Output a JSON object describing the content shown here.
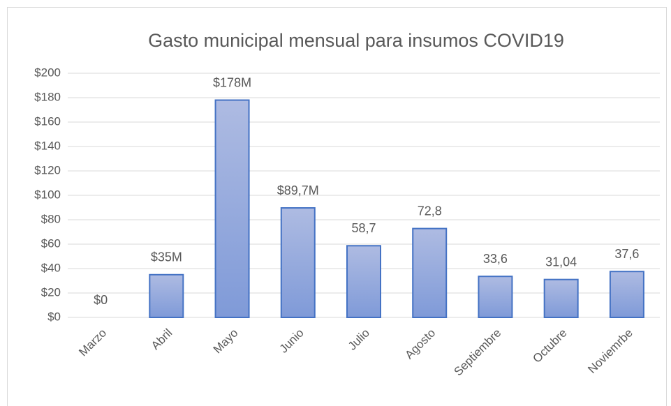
{
  "chart_data": {
    "type": "bar",
    "title": "Gasto municipal  mensual para insumos COVID19",
    "categories": [
      "Marzo",
      "Abril",
      "Mayo",
      "Junio",
      "Julio",
      "Agosto",
      "Septiembre",
      "Octubre",
      "Noviemrbe"
    ],
    "values": [
      0,
      35,
      178,
      89.7,
      58.7,
      72.8,
      33.6,
      31.04,
      37.6
    ],
    "value_labels": [
      "$0",
      "$35M",
      "$178M",
      "$89,7M",
      "58,7",
      "72,8",
      "33,6",
      "31,04",
      "37,6"
    ],
    "color": "#4472c4",
    "ylim": [
      0,
      200
    ],
    "yticks": [
      {
        "value": 0,
        "label": "$0"
      },
      {
        "value": 20,
        "label": "$20"
      },
      {
        "value": 40,
        "label": "$40"
      },
      {
        "value": 60,
        "label": "$60"
      },
      {
        "value": 80,
        "label": "$80"
      },
      {
        "value": 100,
        "label": "$100"
      },
      {
        "value": 120,
        "label": "$120"
      },
      {
        "value": 140,
        "label": "$140"
      },
      {
        "value": 160,
        "label": "$160"
      },
      {
        "value": 180,
        "label": "$180"
      },
      {
        "value": 200,
        "label": "$200"
      }
    ],
    "grid": true
  }
}
